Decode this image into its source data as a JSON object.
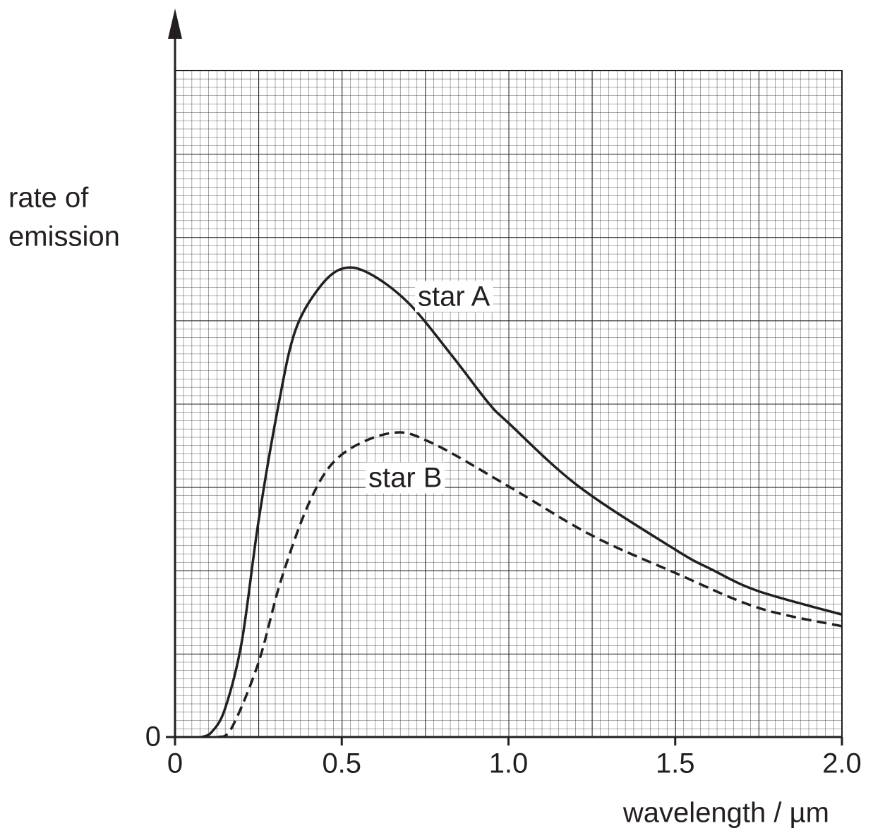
{
  "chart_data": {
    "type": "line",
    "ylabel": [
      "rate of",
      "emission"
    ],
    "xlabel": "wavelength / µm",
    "xlim": [
      0,
      2
    ],
    "ylim": [
      0,
      8
    ],
    "xticks": [
      0,
      0.5,
      {
        "value": 1,
        "label": "1.0"
      },
      1.5,
      {
        "value": 2,
        "label": "2.0"
      }
    ],
    "yticks": [
      0
    ],
    "grid": true,
    "series": [
      {
        "name": "star A",
        "color": "#231f20",
        "dash": "solid",
        "x": [
          0.08,
          0.11,
          0.15,
          0.2,
          0.25,
          0.31,
          0.36,
          0.43,
          0.5,
          0.58,
          0.7,
          0.83,
          0.94,
          1.0,
          1.21,
          1.5,
          1.61,
          1.75,
          2.0
        ],
        "values": [
          0,
          0.06,
          0.34,
          1.14,
          2.58,
          3.98,
          4.87,
          5.38,
          5.62,
          5.57,
          5.21,
          4.58,
          4.01,
          3.77,
          3.01,
          2.25,
          2.01,
          1.75,
          1.47
        ]
      },
      {
        "name": "star B",
        "color": "#231f20",
        "dash": "dashed",
        "x": [
          0.13,
          0.17,
          0.25,
          0.32,
          0.41,
          0.5,
          0.65,
          0.77,
          1.0,
          1.25,
          1.5,
          1.75,
          2.0
        ],
        "values": [
          0,
          0.11,
          0.89,
          1.91,
          2.88,
          3.39,
          3.65,
          3.53,
          3.01,
          2.42,
          1.97,
          1.55,
          1.33
        ]
      }
    ]
  }
}
